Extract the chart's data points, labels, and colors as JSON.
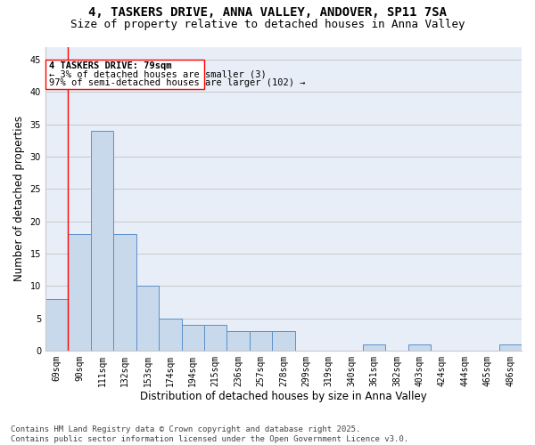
{
  "title_line1": "4, TASKERS DRIVE, ANNA VALLEY, ANDOVER, SP11 7SA",
  "title_line2": "Size of property relative to detached houses in Anna Valley",
  "xlabel": "Distribution of detached houses by size in Anna Valley",
  "ylabel": "Number of detached properties",
  "categories": [
    "69sqm",
    "90sqm",
    "111sqm",
    "132sqm",
    "153sqm",
    "174sqm",
    "194sqm",
    "215sqm",
    "236sqm",
    "257sqm",
    "278sqm",
    "299sqm",
    "319sqm",
    "340sqm",
    "361sqm",
    "382sqm",
    "403sqm",
    "424sqm",
    "444sqm",
    "465sqm",
    "486sqm"
  ],
  "values": [
    8,
    18,
    34,
    18,
    10,
    5,
    4,
    4,
    3,
    3,
    3,
    0,
    0,
    0,
    1,
    0,
    1,
    0,
    0,
    0,
    1
  ],
  "bar_color": "#c9d9ec",
  "bar_edge_color": "#5b8fc9",
  "annotation_line1": "4 TASKERS DRIVE: 79sqm",
  "annotation_line2": "← 3% of detached houses are smaller (3)",
  "annotation_line3": "97% of semi-detached houses are larger (102) →",
  "vline_x": 0.5,
  "ylim": [
    0,
    47
  ],
  "yticks": [
    0,
    5,
    10,
    15,
    20,
    25,
    30,
    35,
    40,
    45
  ],
  "grid_color": "#c8c8c8",
  "background_color": "#e8eef7",
  "footer_line1": "Contains HM Land Registry data © Crown copyright and database right 2025.",
  "footer_line2": "Contains public sector information licensed under the Open Government Licence v3.0.",
  "title_fontsize": 10,
  "subtitle_fontsize": 9,
  "axis_label_fontsize": 8.5,
  "tick_fontsize": 7,
  "annotation_fontsize": 7.5,
  "footer_fontsize": 6.5
}
